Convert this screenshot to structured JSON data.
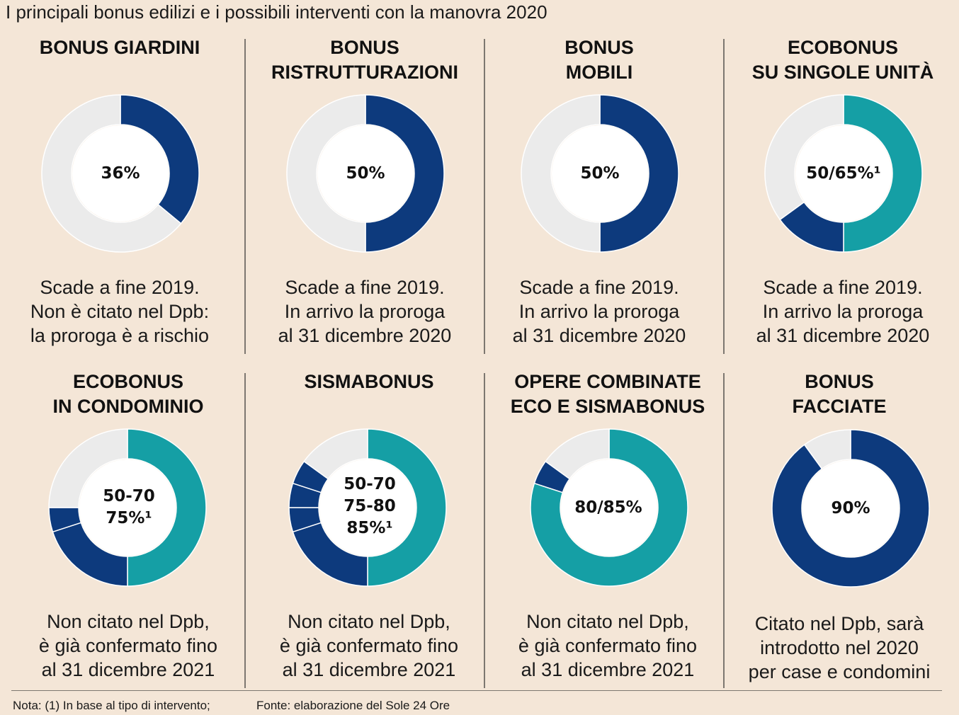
{
  "title": "I principali bonus edilizi e i possibili interventi con la manovra 2020",
  "footnote": "Nota: (1) In base al tipo di intervento;",
  "source": "Fonte: elaborazione del Sole 24 Ore",
  "colors": {
    "navy": "#0d3a7d",
    "teal": "#159fa5",
    "grey": "#ebebeb",
    "background": "#f4e6d7"
  },
  "chart_data": [
    {
      "type": "pie",
      "title": "BONUS GIARDINI",
      "center_label": "36%",
      "note": "Scade a fine 2019.\nNon è citato nel Dpb:\nla proroga è a rischio",
      "slices": [
        {
          "value": 36,
          "color": "navy"
        },
        {
          "value": 64,
          "color": "grey"
        }
      ]
    },
    {
      "type": "pie",
      "title": "BONUS\nRISTRUTTURAZIONI",
      "center_label": "50%",
      "note": "Scade a fine 2019.\nIn arrivo la proroga\nal 31 dicembre 2020",
      "slices": [
        {
          "value": 50,
          "color": "navy"
        },
        {
          "value": 50,
          "color": "grey"
        }
      ]
    },
    {
      "type": "pie",
      "title": "BONUS\nMOBILI",
      "center_label": "50%",
      "note": "Scade a fine 2019.\nIn arrivo la proroga\nal 31 dicembre 2020",
      "slices": [
        {
          "value": 50,
          "color": "navy"
        },
        {
          "value": 50,
          "color": "grey"
        }
      ]
    },
    {
      "type": "pie",
      "title": "ECOBONUS\nSU SINGOLE UNITÀ",
      "center_label": "50/65%¹",
      "note": "Scade a fine 2019.\nIn arrivo la proroga\nal 31 dicembre 2020",
      "slices": [
        {
          "value": 50,
          "color": "teal"
        },
        {
          "value": 15,
          "color": "navy"
        },
        {
          "value": 35,
          "color": "grey"
        }
      ]
    },
    {
      "type": "pie",
      "title": "ECOBONUS\nIN CONDOMINIO",
      "center_label": "50-70\n75%¹",
      "note": "Non citato nel Dpb,\nè già confermato fino\nal 31 dicembre 2021",
      "slices": [
        {
          "value": 50,
          "color": "teal"
        },
        {
          "value": 20,
          "color": "navy"
        },
        {
          "value": 5,
          "color": "navy"
        },
        {
          "value": 25,
          "color": "grey"
        }
      ]
    },
    {
      "type": "pie",
      "title": "SISMABONUS",
      "center_label": "50-70\n75-80\n85%¹",
      "note": "Non citato nel Dpb,\nè già confermato fino\nal 31 dicembre 2021",
      "slices": [
        {
          "value": 50,
          "color": "teal"
        },
        {
          "value": 20,
          "color": "navy"
        },
        {
          "value": 5,
          "color": "navy"
        },
        {
          "value": 5,
          "color": "navy"
        },
        {
          "value": 5,
          "color": "navy"
        },
        {
          "value": 15,
          "color": "grey"
        }
      ]
    },
    {
      "type": "pie",
      "title": "OPERE COMBINATE\nECO E SISMABONUS",
      "center_label": "80/85%",
      "note": "Non citato nel Dpb,\nè già confermato fino\nal 31 dicembre 2021",
      "slices": [
        {
          "value": 80,
          "color": "teal"
        },
        {
          "value": 5,
          "color": "navy"
        },
        {
          "value": 15,
          "color": "grey"
        }
      ]
    },
    {
      "type": "pie",
      "title": "BONUS\nFACCIATE",
      "center_label": "90%",
      "note": "Citato nel Dpb, sarà\nintrodotto nel 2020\nper case e condomini",
      "slices": [
        {
          "value": 90,
          "color": "navy"
        },
        {
          "value": 10,
          "color": "grey"
        }
      ]
    }
  ]
}
